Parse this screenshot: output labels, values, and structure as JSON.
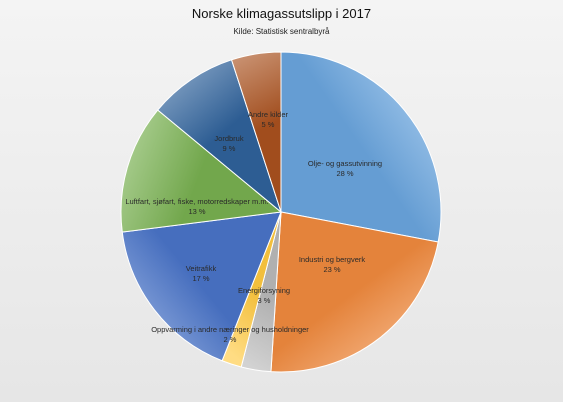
{
  "chart_data": {
    "type": "pie",
    "title": "Norske klimagassutslipp i 2017",
    "subtitle": "Kilde: Statistisk sentralbyrå",
    "slices": [
      {
        "label": "Olje- og gassutvinning",
        "value": 28,
        "value_label": "28 %",
        "color": "#6aa5de"
      },
      {
        "label": "Industri og bergverk",
        "value": 23,
        "value_label": "23 %",
        "color": "#f08a3e"
      },
      {
        "label": "Energiforsyning",
        "value": 3,
        "value_label": "3 %",
        "color": "#b9b9b9"
      },
      {
        "label": "Oppvarming i andre næringer og husholdninger",
        "value": 2,
        "value_label": "2 %",
        "color": "#ffc940"
      },
      {
        "label": "Veitrafikk",
        "value": 17,
        "value_label": "17 %",
        "color": "#4a74c8"
      },
      {
        "label": "Luftfart, sjøfart, fiske, motorredskaper m.m.",
        "value": 13,
        "value_label": "13 %",
        "color": "#78b050"
      },
      {
        "label": "Jordbruk",
        "value": 9,
        "value_label": "9 %",
        "color": "#2f629b"
      },
      {
        "label": "Andre kilder",
        "value": 5,
        "value_label": "5 %",
        "color": "#a9511f"
      }
    ]
  }
}
